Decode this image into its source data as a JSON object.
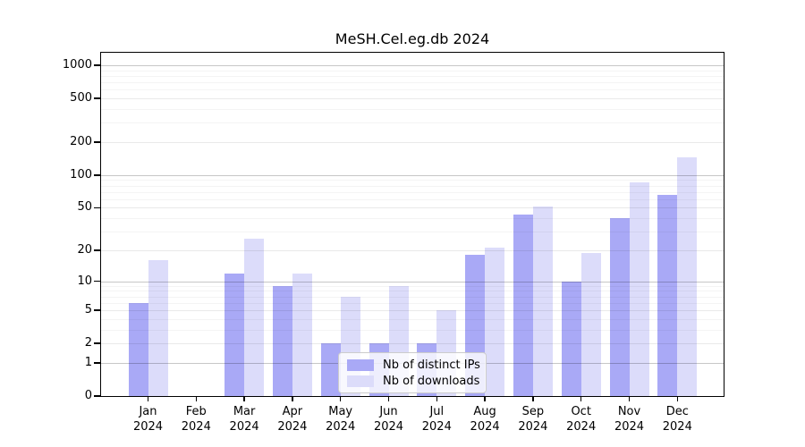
{
  "figure": {
    "title": "MeSH.Cel.eg.db 2024"
  },
  "chart_data": {
    "type": "bar",
    "title": "MeSH.Cel.eg.db 2024",
    "y_scale": "log1p",
    "ylim": [
      0,
      1300
    ],
    "grid": "horizontal",
    "legend_position": "inside-bottom-center",
    "x": [
      {
        "month": "Jan",
        "year": "2024"
      },
      {
        "month": "Feb",
        "year": "2024"
      },
      {
        "month": "Mar",
        "year": "2024"
      },
      {
        "month": "Apr",
        "year": "2024"
      },
      {
        "month": "May",
        "year": "2024"
      },
      {
        "month": "Jun",
        "year": "2024"
      },
      {
        "month": "Jul",
        "year": "2024"
      },
      {
        "month": "Aug",
        "year": "2024"
      },
      {
        "month": "Sep",
        "year": "2024"
      },
      {
        "month": "Oct",
        "year": "2024"
      },
      {
        "month": "Nov",
        "year": "2024"
      },
      {
        "month": "Dec",
        "year": "2024"
      }
    ],
    "series": [
      {
        "name": "Nb of distinct IPs",
        "color": "#a9a9f6",
        "values": [
          6,
          0,
          12,
          9,
          2,
          2,
          2,
          18,
          43,
          10,
          40,
          66
        ]
      },
      {
        "name": "Nb of downloads",
        "color": "#dcdcfa",
        "values": [
          16,
          0,
          26,
          12,
          7,
          9,
          5,
          21,
          51,
          19,
          85,
          145
        ]
      }
    ],
    "y_ticks": [
      {
        "value": 1000,
        "label": "1000",
        "major": true
      },
      {
        "value": 500,
        "label": "500",
        "major": false
      },
      {
        "value": 200,
        "label": "200",
        "major": false
      },
      {
        "value": 100,
        "label": "100",
        "major": true
      },
      {
        "value": 50,
        "label": "50",
        "major": false
      },
      {
        "value": 20,
        "label": "20",
        "major": false
      },
      {
        "value": 10,
        "label": "10",
        "major": true
      },
      {
        "value": 5,
        "label": "5",
        "major": false
      },
      {
        "value": 2,
        "label": "2",
        "major": false
      },
      {
        "value": 1,
        "label": "1",
        "major": true
      },
      {
        "value": 0,
        "label": "0",
        "major": false
      }
    ],
    "minor_gridlines": [
      3,
      4,
      6,
      7,
      8,
      9,
      30,
      40,
      60,
      70,
      80,
      90,
      300,
      400,
      600,
      700,
      800,
      900
    ]
  },
  "colors": {
    "background": "#ffffff",
    "axis": "#000000",
    "grid_major": "#c8c8c8",
    "grid_minor": "#ebebeb",
    "legend_border": "#cccccc"
  }
}
